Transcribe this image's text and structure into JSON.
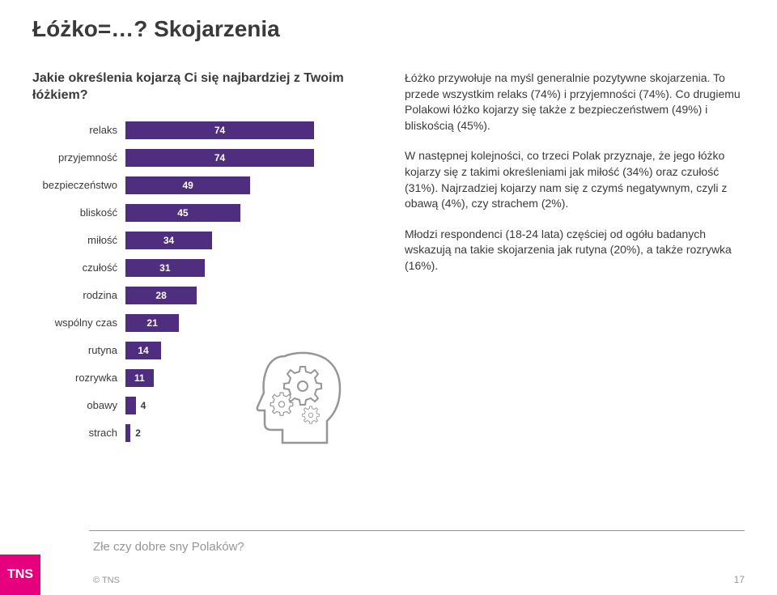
{
  "title": "Łóżko=…? Skojarzenia",
  "question": "Jakie określenia kojarzą Ci się najbardziej z Twoim łóżkiem?",
  "chart": {
    "type": "bar",
    "orientation": "horizontal",
    "max": 100,
    "bar_color": "#4f2d7f",
    "value_color_inside": "#ffffff",
    "value_color_outside": "#3a3a3a",
    "label_fontsize": 13,
    "value_fontsize": 12,
    "items": [
      {
        "label": "relaks",
        "value": 74
      },
      {
        "label": "przyjemność",
        "value": 74
      },
      {
        "label": "bezpieczeństwo",
        "value": 49
      },
      {
        "label": "bliskość",
        "value": 45
      },
      {
        "label": "miłość",
        "value": 34
      },
      {
        "label": "czułość",
        "value": 31
      },
      {
        "label": "rodzina",
        "value": 28
      },
      {
        "label": "wspólny czas",
        "value": 21
      },
      {
        "label": "rutyna",
        "value": 14
      },
      {
        "label": "rozrywka",
        "value": 11
      },
      {
        "label": "obawy",
        "value": 4
      },
      {
        "label": "strach",
        "value": 2
      }
    ]
  },
  "paragraphs": [
    "Łóżko przywołuje na myśl generalnie pozytywne skojarzenia. To przede wszystkim relaks (74%) i przyjemności (74%). Co drugiemu Polakowi łóżko kojarzy się także z bezpieczeństwem (49%) i bliskością (45%).",
    "W następnej kolejności, co trzeci Polak przyznaje, że jego łóżko kojarzy się z takimi określeniami jak miłość (34%) oraz czułość (31%). Najrzadziej kojarzy nam się z czymś negatywnym, czyli z obawą (4%), czy strachem (2%).",
    "Młodzi respondenci (18-24 lata) częściej od ogółu badanych wskazują na takie skojarzenia jak rutyna (20%), a także rozrywka (16%)."
  ],
  "icon": {
    "name": "head-gears",
    "stroke": "#969696",
    "fill": "#ffffff"
  },
  "footer": {
    "title": "Złe czy dobre sny Polaków?",
    "logo_text": "TNS",
    "logo_bg": "#e6007e",
    "copyright": "© TNS",
    "page": "17"
  },
  "colors": {
    "text": "#3a3a3a",
    "muted": "#969696",
    "background": "#ffffff"
  }
}
